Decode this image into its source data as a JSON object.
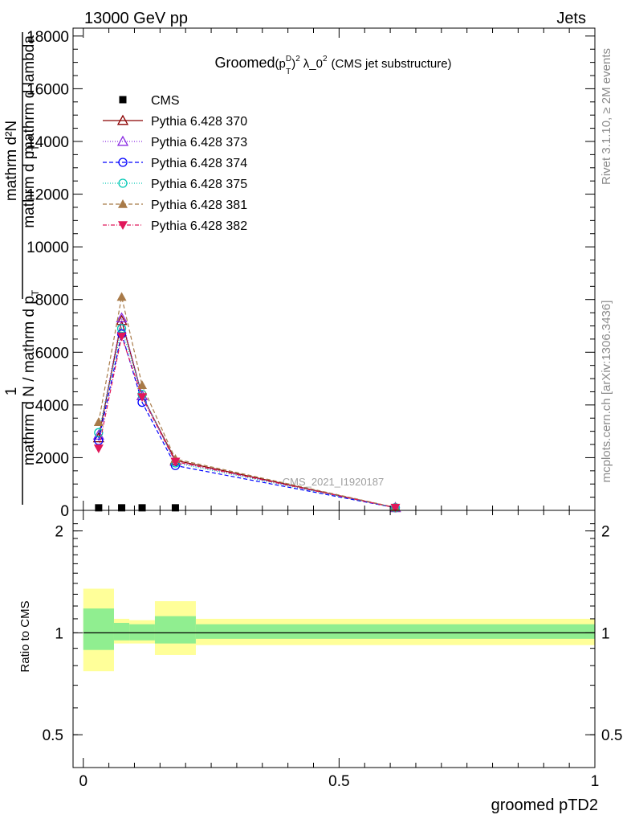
{
  "header": {
    "left": "13000 GeV pp",
    "right": "Jets",
    "side_top": "Rivet 3.1.10, ≥ 2M events",
    "side_bottom": "mcplots.cern.ch [arXiv:1306.3436]"
  },
  "watermark": "CMS_2021_I1920187",
  "colors": {
    "cms": "#000000",
    "p370": "#8b0000",
    "p373": "#8a2be2",
    "p374": "#0000ff",
    "p375": "#00c8b4",
    "p381": "#a87a48",
    "p382": "#e0185a",
    "band_inner": "#90ee90",
    "band_outer": "#ffff99"
  },
  "chart_data": [
    {
      "id": "main",
      "type": "line",
      "title_main": "Groomed",
      "title_sym": "(p",
      "title_sup1": "D",
      "title_sub1": "T",
      "title_sup2": "2",
      "title_rest": "λ_0",
      "title_sup3": "2",
      "title_tail": "(CMS jet substructure)",
      "ylabel_top": "mathrm d²N",
      "ylabel_top2": "mathrm d p",
      "ylabel_top2_sub": "T",
      "ylabel_top3": "mathrm d lambda",
      "ylabel_one": "1",
      "ylabel_bottom": "mathrm d N / mathrm d p",
      "ylabel_bottom_sub": "T",
      "ylim": [
        0,
        18300
      ],
      "xlim": [
        -0.02,
        1.0
      ],
      "yticks": [
        {
          "v": 0,
          "label": "0"
        },
        {
          "v": 2000,
          "label": "2000"
        },
        {
          "v": 4000,
          "label": "4000"
        },
        {
          "v": 6000,
          "label": "6000"
        },
        {
          "v": 8000,
          "label": "8000"
        },
        {
          "v": 10000,
          "label": "10000"
        },
        {
          "v": 12000,
          "label": "12000"
        },
        {
          "v": 14000,
          "label": "14000"
        },
        {
          "v": 16000,
          "label": "16000"
        },
        {
          "v": 18000,
          "label": "18000"
        }
      ],
      "x_points": [
        0.03,
        0.075,
        0.115,
        0.18,
        0.61
      ],
      "series": [
        {
          "key": "cms",
          "name": "CMS",
          "marker": "square",
          "dash": "",
          "values": [
            5,
            5,
            5,
            5,
            0
          ]
        },
        {
          "key": "p370",
          "name": "Pythia 6.428 370",
          "marker": "triangle-open",
          "dash": "",
          "values": [
            2750,
            7200,
            4350,
            1900,
            100
          ]
        },
        {
          "key": "p373",
          "name": "Pythia 6.428 373",
          "marker": "triangle-open",
          "dash": "1,2",
          "values": [
            2850,
            7300,
            4350,
            1850,
            100
          ]
        },
        {
          "key": "p374",
          "name": "Pythia 6.428 374",
          "marker": "circle-open",
          "dash": "5,3",
          "values": [
            2650,
            6700,
            4100,
            1700,
            100
          ]
        },
        {
          "key": "p375",
          "name": "Pythia 6.428 375",
          "marker": "circle-open",
          "dash": "1,2",
          "values": [
            2950,
            6900,
            4400,
            1800,
            100
          ]
        },
        {
          "key": "p381",
          "name": "Pythia 6.428 381",
          "marker": "triangle-filled",
          "dash": "5,3",
          "values": [
            3350,
            8100,
            4750,
            1950,
            110
          ]
        },
        {
          "key": "p382",
          "name": "Pythia 6.428 382",
          "marker": "triangle-down-filled",
          "dash": "5,2,1,2",
          "values": [
            2350,
            6600,
            4300,
            1850,
            100
          ]
        }
      ]
    },
    {
      "id": "ratio",
      "type": "area",
      "ylabel": "Ratio to CMS",
      "xlabel": "groomed pTD2",
      "ylim": [
        0.4,
        2.3
      ],
      "log_scale": true,
      "xticks": [
        {
          "v": 0,
          "label": "0"
        },
        {
          "v": 0.5,
          "label": "0.5"
        },
        {
          "v": 1,
          "label": "1"
        }
      ],
      "yticks": [
        {
          "v": 0.5,
          "label": "0.5"
        },
        {
          "v": 1,
          "label": "1"
        },
        {
          "v": 2,
          "label": "2"
        }
      ],
      "bins": [
        {
          "lo": 0.0,
          "hi": 0.06,
          "inner": [
            0.89,
            1.18
          ],
          "outer": [
            0.77,
            1.35
          ]
        },
        {
          "lo": 0.06,
          "hi": 0.09,
          "inner": [
            0.95,
            1.07
          ],
          "outer": [
            0.93,
            1.1
          ]
        },
        {
          "lo": 0.09,
          "hi": 0.14,
          "inner": [
            0.95,
            1.06
          ],
          "outer": [
            0.93,
            1.09
          ]
        },
        {
          "lo": 0.14,
          "hi": 0.22,
          "inner": [
            0.93,
            1.12
          ],
          "outer": [
            0.86,
            1.24
          ]
        },
        {
          "lo": 0.22,
          "hi": 1.0,
          "inner": [
            0.96,
            1.06
          ],
          "outer": [
            0.92,
            1.1
          ]
        }
      ]
    }
  ]
}
